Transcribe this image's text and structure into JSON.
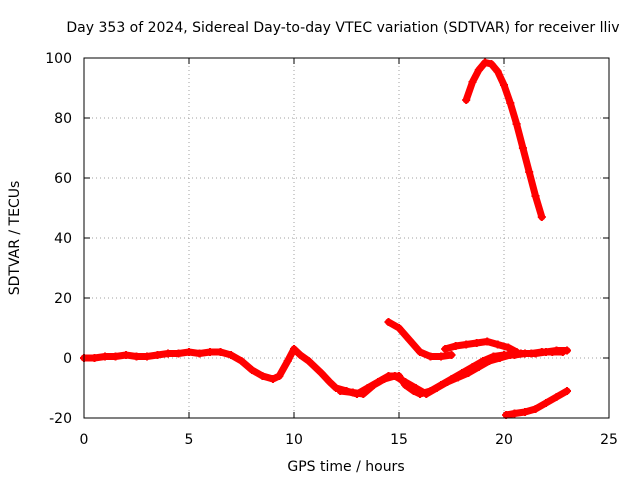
{
  "chart_data": {
    "type": "scatter",
    "title": "Day 353 of 2024, Sidereal Day-to-day VTEC variation (SDTVAR) for receiver lliv",
    "xlabel": "GPS time / hours",
    "ylabel": "SDTVAR / TECUs",
    "xlim": [
      0,
      25
    ],
    "ylim": [
      -20,
      100
    ],
    "x_ticks": [
      0,
      5,
      10,
      15,
      20,
      25
    ],
    "y_ticks": [
      -20,
      0,
      20,
      40,
      60,
      80,
      100
    ],
    "grid": true,
    "marker_color": "#ff0000",
    "series": [
      {
        "x": [
          0,
          0.5,
          1,
          1.5,
          2,
          2.5,
          3,
          3.5,
          4,
          4.5,
          5,
          5.5,
          6,
          6.5,
          7,
          7.5,
          8,
          8.5,
          9,
          9.3,
          9.7,
          10,
          10.3,
          10.7,
          11,
          11.3,
          11.7,
          12,
          12.5,
          13,
          13.5,
          14,
          14.5,
          15,
          15.3,
          15.7,
          16,
          16.5,
          17,
          17.5,
          18,
          18.5,
          19,
          19.5,
          20,
          20.5,
          21,
          21.5,
          22,
          22.5,
          23
        ],
        "y": [
          0,
          0,
          0.5,
          0.5,
          1,
          0.5,
          0.5,
          1,
          1.5,
          1.5,
          2,
          1.5,
          2,
          2,
          1,
          -1,
          -4,
          -6,
          -7,
          -6,
          -1,
          3,
          1,
          -1,
          -3,
          -5,
          -8,
          -10,
          -11,
          -12,
          -10,
          -8,
          -6,
          -6,
          -9,
          -11,
          -12,
          -11,
          -9,
          -7,
          -5,
          -3,
          -1,
          0.5,
          1,
          1,
          1.5,
          1.5,
          2,
          2.5,
          2.5
        ]
      },
      {
        "x": [
          12.2,
          12.8,
          13.3,
          13.8,
          14.3,
          14.8,
          15.3,
          15.8,
          16.3,
          16.8,
          17.3,
          17.8,
          18.3,
          18.8,
          19.3,
          19.8,
          20.3,
          20.8,
          21.3,
          21.8,
          22.3,
          22.8
        ],
        "y": [
          -11,
          -11.5,
          -12,
          -9,
          -7,
          -6,
          -8,
          -10,
          -12,
          -10,
          -8,
          -6.5,
          -5,
          -3,
          -1,
          0,
          1,
          1.5,
          1.5,
          2,
          2,
          2
        ]
      },
      {
        "x": [
          14.5,
          15,
          15.5,
          16,
          16.5,
          17,
          17.5
        ],
        "y": [
          12,
          10,
          6,
          2,
          0.5,
          0.5,
          1
        ]
      },
      {
        "x": [
          17.2,
          17.7,
          18.2,
          18.7,
          19.2,
          19.7,
          20.2,
          20.6
        ],
        "y": [
          3,
          4,
          4.5,
          5,
          5.5,
          4.5,
          3.5,
          2
        ]
      },
      {
        "x": [
          18.2,
          18.5,
          18.8,
          19.1,
          19.4,
          19.7,
          20,
          20.3,
          20.6,
          20.9,
          21.2,
          21.5,
          21.8
        ],
        "y": [
          86,
          92,
          96,
          98.5,
          98,
          95.5,
          91,
          85,
          78,
          70,
          62,
          54,
          47
        ]
      },
      {
        "x": [
          20.1,
          20.5,
          21,
          21.5,
          22,
          22.5,
          23
        ],
        "y": [
          -19,
          -18.5,
          -18,
          -17,
          -15,
          -13,
          -11
        ]
      }
    ]
  }
}
